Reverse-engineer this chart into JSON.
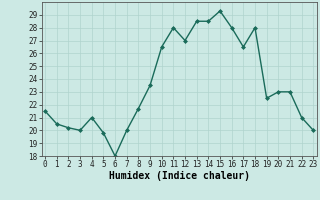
{
  "x": [
    0,
    1,
    2,
    3,
    4,
    5,
    6,
    7,
    8,
    9,
    10,
    11,
    12,
    13,
    14,
    15,
    16,
    17,
    18,
    19,
    20,
    21,
    22,
    23
  ],
  "y": [
    21.5,
    20.5,
    20.2,
    20.0,
    21.0,
    19.8,
    18.0,
    20.0,
    21.7,
    23.5,
    26.5,
    28.0,
    27.0,
    28.5,
    28.5,
    29.3,
    28.0,
    26.5,
    28.0,
    22.5,
    23.0,
    23.0,
    21.0,
    20.0
  ],
  "line_color": "#1a6b5a",
  "marker": "D",
  "marker_size": 2.0,
  "bg_color": "#cce9e4",
  "grid_color": "#b0d4ce",
  "xlabel": "Humidex (Indice chaleur)",
  "ylim": [
    18,
    30
  ],
  "yticks": [
    18,
    19,
    20,
    21,
    22,
    23,
    24,
    25,
    26,
    27,
    28,
    29
  ],
  "xticks": [
    0,
    1,
    2,
    3,
    4,
    5,
    6,
    7,
    8,
    9,
    10,
    11,
    12,
    13,
    14,
    15,
    16,
    17,
    18,
    19,
    20,
    21,
    22,
    23
  ],
  "xlim": [
    -0.3,
    23.3
  ],
  "tick_fontsize": 5.5,
  "xlabel_fontsize": 7.0,
  "linewidth": 1.0
}
